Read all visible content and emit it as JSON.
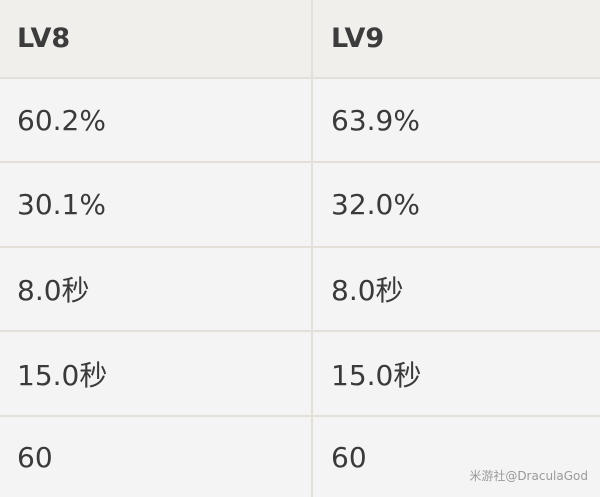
{
  "table": {
    "headers": [
      "LV8",
      "LV9"
    ],
    "rows": [
      [
        "60.2%",
        "63.9%"
      ],
      [
        "30.1%",
        "32.0%"
      ],
      [
        "8.0秒",
        "8.0秒"
      ],
      [
        "15.0秒",
        "15.0秒"
      ],
      [
        "60",
        "60"
      ]
    ]
  },
  "watermark": "米游社@DraculaGod"
}
